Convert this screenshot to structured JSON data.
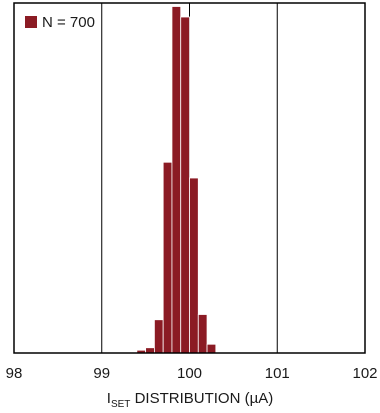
{
  "chart_data": {
    "type": "bar",
    "subtype": "histogram",
    "xlim": [
      98,
      102
    ],
    "x_ticks": [
      98,
      99,
      100,
      101,
      102
    ],
    "x_tick_labels": [
      "98",
      "99",
      "100",
      "101",
      "102"
    ],
    "xlabel": {
      "main": "I",
      "subscript": "SET",
      "rest": " DISTRIBUTION (µA)"
    },
    "ylabel": "",
    "ylim": [
      0,
      1
    ],
    "legend": {
      "label": "N = 700",
      "placement": "top-left"
    },
    "grid": "vertical lines at each x tick",
    "bar_color": "#8b1b24",
    "bin_width": 0.1,
    "bins": [
      {
        "x_start": 99.4,
        "x_end": 99.5,
        "value": 0.008
      },
      {
        "x_start": 99.5,
        "x_end": 99.6,
        "value": 0.015
      },
      {
        "x_start": 99.6,
        "x_end": 99.7,
        "value": 0.095
      },
      {
        "x_start": 99.7,
        "x_end": 99.8,
        "value": 0.545
      },
      {
        "x_start": 99.8,
        "x_end": 99.9,
        "value": 0.99
      },
      {
        "x_start": 99.9,
        "x_end": 100.0,
        "value": 0.96
      },
      {
        "x_start": 100.0,
        "x_end": 100.1,
        "value": 0.5
      },
      {
        "x_start": 100.1,
        "x_end": 100.2,
        "value": 0.11
      },
      {
        "x_start": 100.2,
        "x_end": 100.3,
        "value": 0.025
      }
    ]
  }
}
